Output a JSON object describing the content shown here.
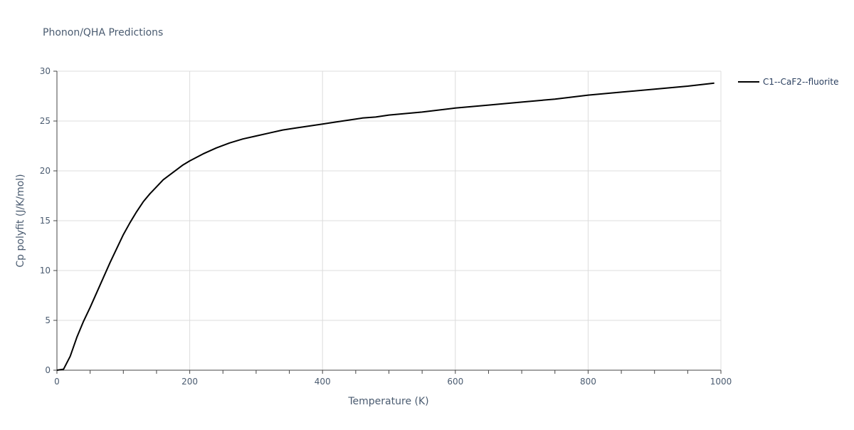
{
  "chart_data": {
    "type": "line",
    "title": "Phonon/QHA Predictions",
    "xlabel": "Temperature (K)",
    "ylabel": "Cp polyfit (J/K/mol)",
    "xlim": [
      0,
      1000
    ],
    "ylim": [
      0,
      30
    ],
    "xticks": [
      0,
      200,
      400,
      600,
      800,
      1000
    ],
    "yticks": [
      0,
      5,
      10,
      15,
      20,
      25,
      30
    ],
    "xtick_labels": [
      "0",
      "200",
      "400",
      "600",
      "800",
      "1000"
    ],
    "ytick_labels": [
      "0",
      "5",
      "10",
      "15",
      "20",
      "25",
      "30"
    ],
    "grid": true,
    "legend_position": "top-right",
    "series": [
      {
        "name": "C1--CaF2--fluorite",
        "color": "#000000",
        "x": [
          0,
          10,
          20,
          30,
          40,
          50,
          60,
          70,
          80,
          90,
          100,
          110,
          120,
          130,
          140,
          150,
          160,
          170,
          180,
          190,
          200,
          220,
          240,
          260,
          280,
          300,
          320,
          340,
          360,
          380,
          400,
          420,
          440,
          460,
          480,
          500,
          550,
          600,
          650,
          700,
          750,
          800,
          850,
          900,
          950,
          990
        ],
        "y": [
          0,
          0.1,
          1.4,
          3.3,
          4.9,
          6.3,
          7.8,
          9.3,
          10.8,
          12.2,
          13.6,
          14.8,
          15.9,
          16.9,
          17.7,
          18.4,
          19.1,
          19.6,
          20.1,
          20.6,
          21.0,
          21.7,
          22.3,
          22.8,
          23.2,
          23.5,
          23.8,
          24.1,
          24.3,
          24.5,
          24.7,
          24.9,
          25.1,
          25.3,
          25.4,
          25.6,
          25.9,
          26.3,
          26.6,
          26.9,
          27.2,
          27.6,
          27.9,
          28.2,
          28.5,
          28.8
        ]
      }
    ]
  }
}
